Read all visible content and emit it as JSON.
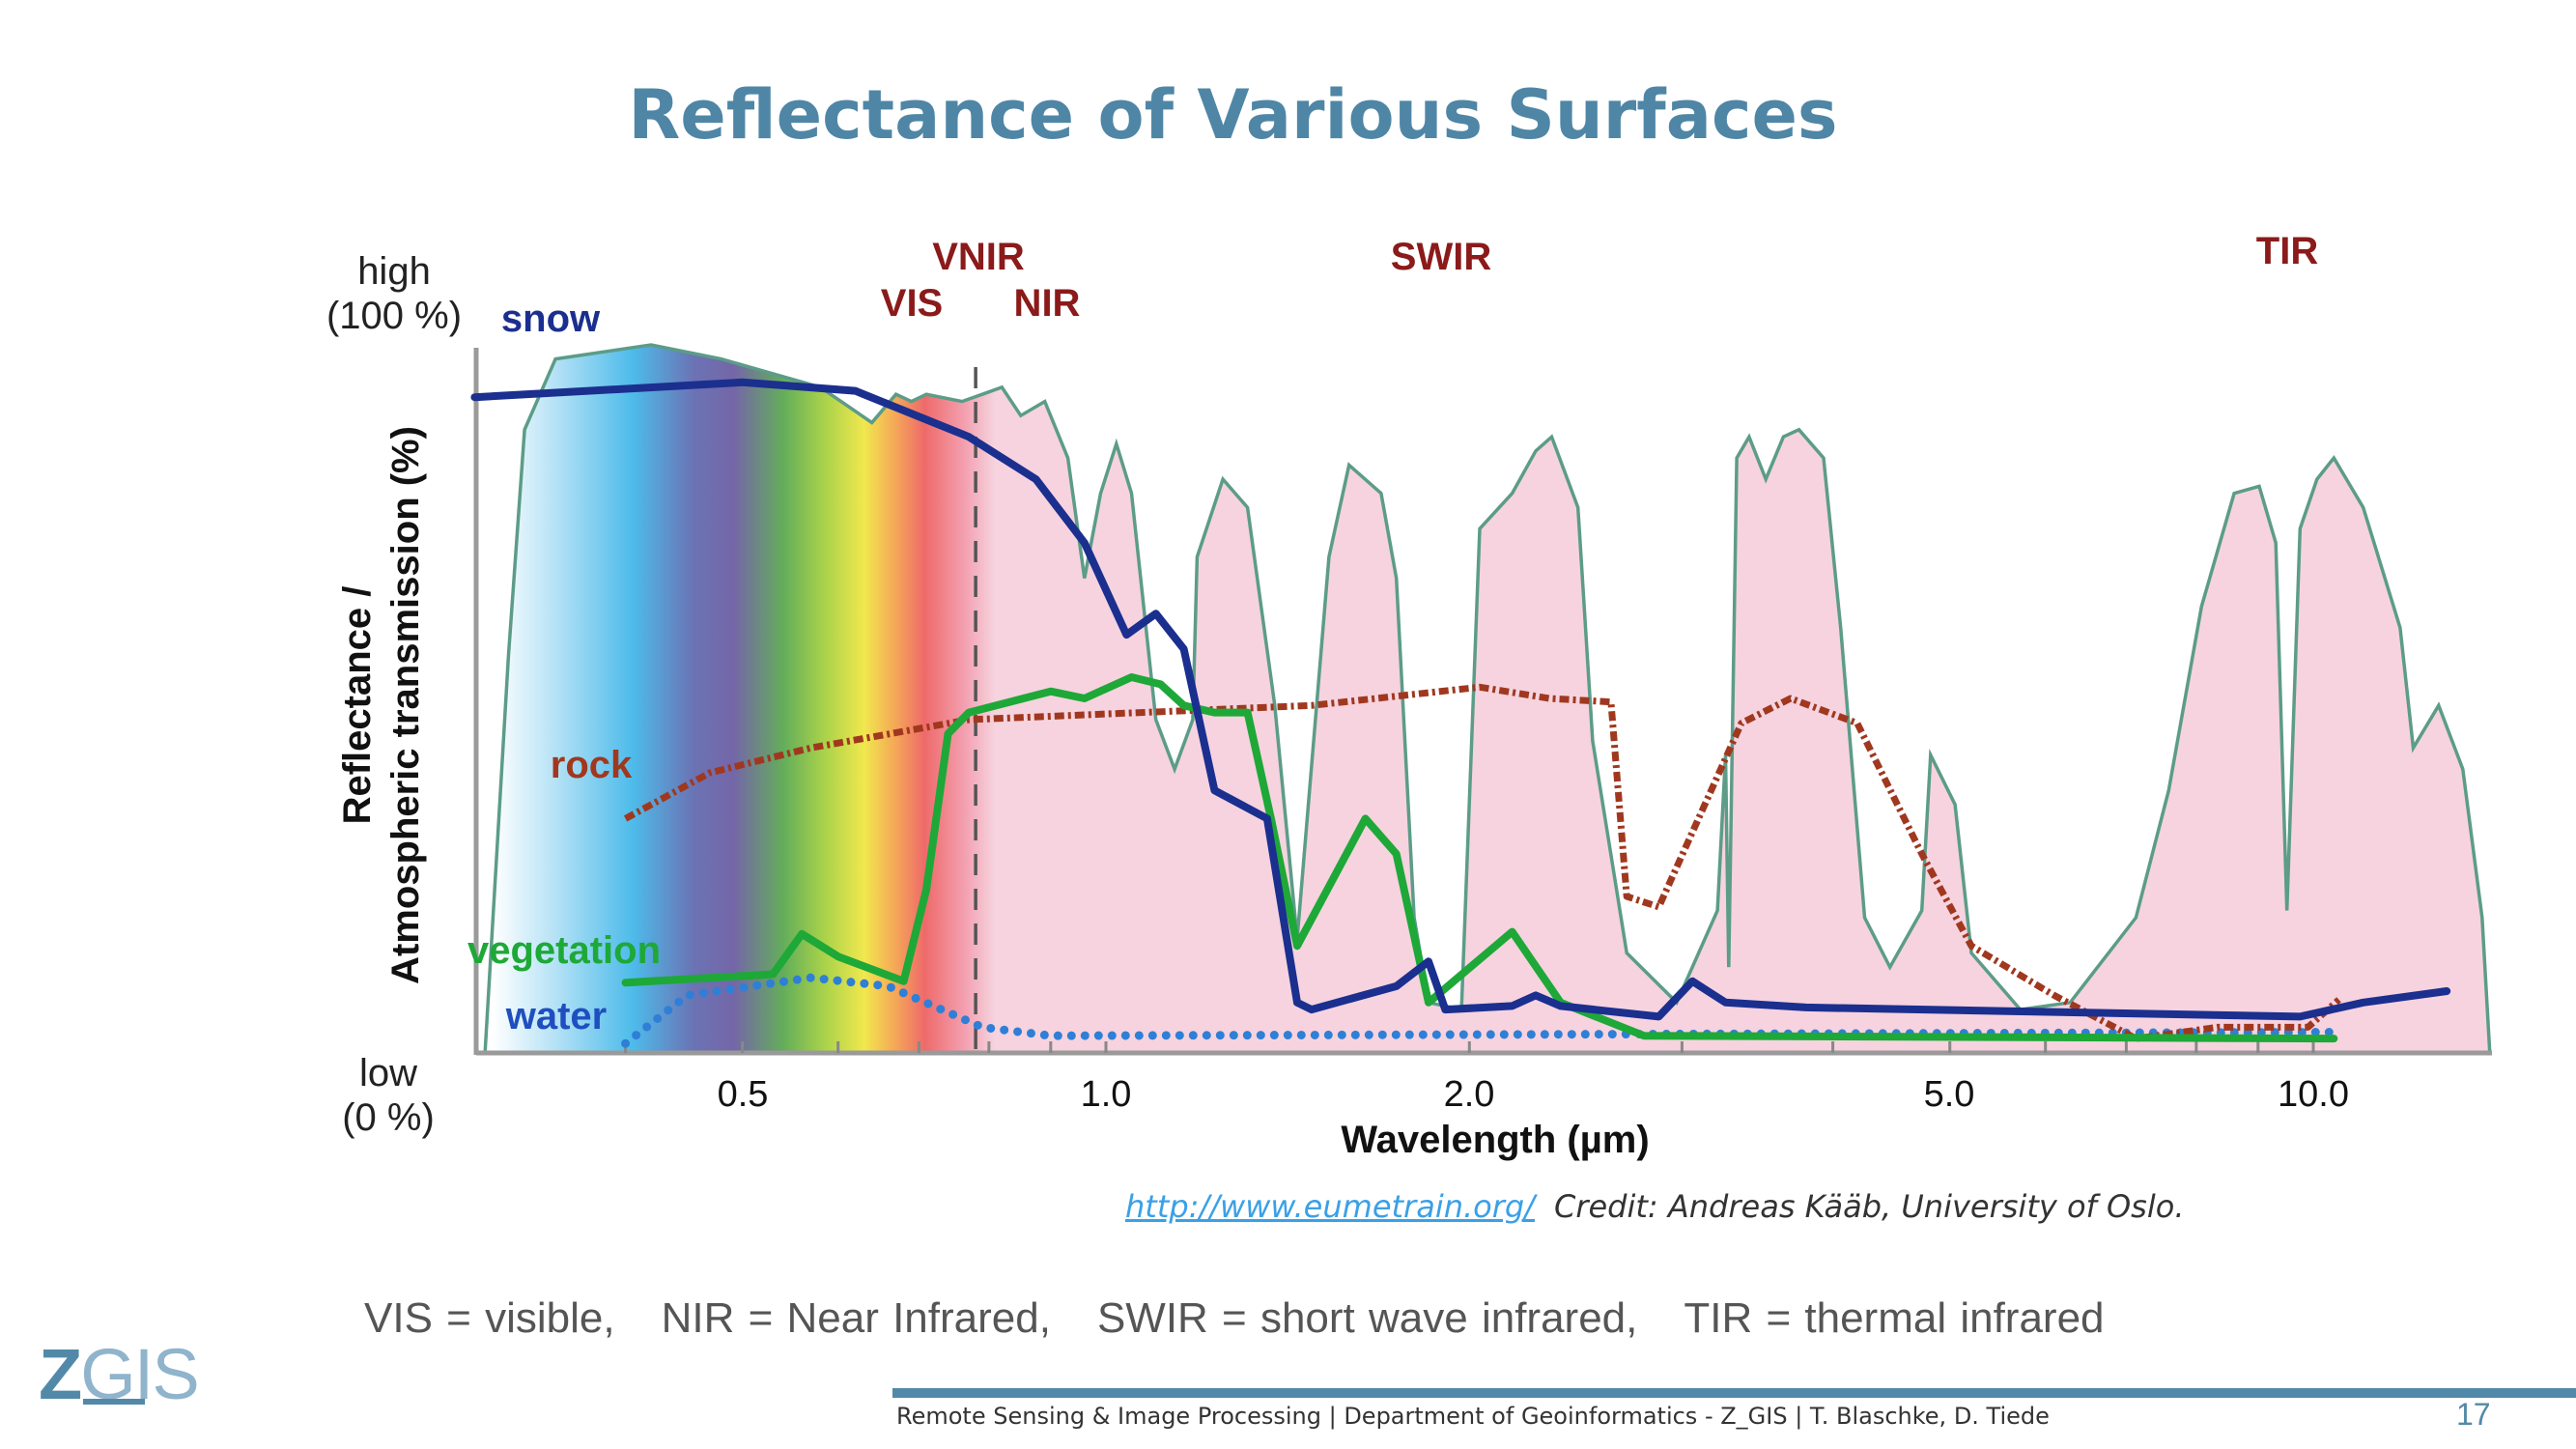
{
  "slide": {
    "title": "Reflectance of Various Surfaces",
    "credit_link": "http://www.eumetrain.org/",
    "credit_text": "Credit: Andreas Kääb, University of Oslo.",
    "definitions": [
      "VIS = visible,",
      "NIR = Near Infrared,",
      "SWIR = short wave infrared,",
      "TIR = thermal infrared"
    ],
    "footer": "Remote Sensing & Image Processing | Department of Geoinformatics - Z_GIS | T. Blaschke, D. Tiede",
    "page_number": "17",
    "logo": "Z_GIS"
  },
  "chart_data": {
    "type": "line",
    "xlabel": "Wavelength (µm)",
    "ylabel_line1": "Reflectance /",
    "ylabel_line2": "Atmospheric transmission (%)",
    "x_scale": "log",
    "xlim": [
      0.3,
      14
    ],
    "ylim": [
      0,
      100
    ],
    "x_ticks": [
      0.5,
      1.0,
      2.0,
      5.0,
      10.0
    ],
    "x_tick_labels": [
      "0.5",
      "1.0",
      "2.0",
      "5.0",
      "10.0"
    ],
    "y_high_label": [
      "high",
      "(100 %)"
    ],
    "y_low_label": [
      "low",
      "(0 %)"
    ],
    "grid": false,
    "bands": [
      {
        "label": "VNIR",
        "at": 0.78,
        "row": 1
      },
      {
        "label": "VIS",
        "at": 0.62,
        "row": 2
      },
      {
        "label": "NIR",
        "at": 0.98,
        "row": 2
      },
      {
        "label": "SWIR",
        "at": 1.92,
        "row": 1
      },
      {
        "label": "TIR",
        "at": 9.4,
        "row": 1
      }
    ],
    "vis_nir_boundary": 0.78,
    "atmospheric_transmission": {
      "fill": "#f6d3df",
      "stroke": "#5c9c88",
      "points": [
        [
          0.306,
          0
        ],
        [
          0.32,
          56
        ],
        [
          0.33,
          88
        ],
        [
          0.35,
          98
        ],
        [
          0.42,
          100
        ],
        [
          0.48,
          98
        ],
        [
          0.58,
          94
        ],
        [
          0.64,
          89
        ],
        [
          0.67,
          93
        ],
        [
          0.69,
          92
        ],
        [
          0.71,
          93
        ],
        [
          0.76,
          92
        ],
        [
          0.79,
          93
        ],
        [
          0.82,
          94
        ],
        [
          0.85,
          90
        ],
        [
          0.89,
          92
        ],
        [
          0.93,
          84
        ],
        [
          0.96,
          67
        ],
        [
          0.99,
          79
        ],
        [
          1.02,
          86
        ],
        [
          1.05,
          79
        ],
        [
          1.1,
          47
        ],
        [
          1.14,
          40
        ],
        [
          1.18,
          47
        ],
        [
          1.19,
          70
        ],
        [
          1.25,
          81
        ],
        [
          1.31,
          77
        ],
        [
          1.38,
          49
        ],
        [
          1.44,
          16
        ],
        [
          1.53,
          70
        ],
        [
          1.59,
          83
        ],
        [
          1.69,
          79
        ],
        [
          1.74,
          67
        ],
        [
          1.8,
          19
        ],
        [
          1.85,
          7
        ],
        [
          1.97,
          6
        ],
        [
          2.04,
          74
        ],
        [
          2.17,
          79
        ],
        [
          2.27,
          85
        ],
        [
          2.34,
          87
        ],
        [
          2.46,
          77
        ],
        [
          2.53,
          44
        ],
        [
          2.7,
          14
        ],
        [
          2.97,
          7
        ],
        [
          3.21,
          20
        ],
        [
          3.26,
          42
        ],
        [
          3.28,
          12
        ],
        [
          3.33,
          84
        ],
        [
          3.41,
          87
        ],
        [
          3.52,
          81
        ],
        [
          3.64,
          87
        ],
        [
          3.75,
          88
        ],
        [
          3.93,
          84
        ],
        [
          4.06,
          60
        ],
        [
          4.25,
          19
        ],
        [
          4.46,
          12
        ],
        [
          4.74,
          20
        ],
        [
          4.82,
          42
        ],
        [
          5.05,
          35
        ],
        [
          5.21,
          14
        ],
        [
          5.72,
          6
        ],
        [
          6.29,
          7
        ],
        [
          7.13,
          19
        ],
        [
          7.59,
          37
        ],
        [
          8.08,
          63
        ],
        [
          8.6,
          79
        ],
        [
          9.02,
          80
        ],
        [
          9.31,
          72
        ],
        [
          9.51,
          20
        ],
        [
          9.75,
          74
        ],
        [
          10.07,
          81
        ],
        [
          10.4,
          84
        ],
        [
          11.0,
          77
        ],
        [
          11.8,
          60
        ],
        [
          12.1,
          43
        ],
        [
          12.7,
          49
        ],
        [
          13.3,
          40
        ],
        [
          13.8,
          19
        ],
        [
          14.0,
          0
        ]
      ]
    },
    "series": [
      {
        "name": "snow",
        "color": "#1b2f8f",
        "style": "solid",
        "points": [
          [
            0.3,
            92.6
          ],
          [
            0.5,
            94.7
          ],
          [
            0.62,
            93.5
          ],
          [
            0.77,
            87
          ],
          [
            0.875,
            81
          ],
          [
            0.96,
            72
          ],
          [
            1.04,
            59
          ],
          [
            1.1,
            62
          ],
          [
            1.16,
            57
          ],
          [
            1.23,
            37
          ],
          [
            1.36,
            33
          ],
          [
            1.44,
            7
          ],
          [
            1.48,
            6
          ],
          [
            1.74,
            9.3
          ],
          [
            1.85,
            12.8
          ],
          [
            1.91,
            6
          ],
          [
            2.17,
            6.5
          ],
          [
            2.27,
            8
          ],
          [
            2.38,
            6.5
          ],
          [
            2.87,
            5
          ],
          [
            3.06,
            10
          ],
          [
            3.26,
            7
          ],
          [
            3.8,
            6.3
          ],
          [
            9.75,
            5
          ],
          [
            11.0,
            7
          ],
          [
            12.9,
            8.6
          ]
        ]
      },
      {
        "name": "rock",
        "color": "#a0381f",
        "style": "dashdot",
        "points": [
          [
            0.4,
            33
          ],
          [
            0.47,
            39.5
          ],
          [
            0.57,
            43
          ],
          [
            0.77,
            47
          ],
          [
            1.07,
            48
          ],
          [
            1.48,
            49
          ],
          [
            2.04,
            51.6
          ],
          [
            2.33,
            50
          ],
          [
            2.62,
            49.5
          ],
          [
            2.7,
            22
          ],
          [
            2.87,
            20.5
          ],
          [
            3.36,
            46.5
          ],
          [
            3.69,
            50
          ],
          [
            4.19,
            46.5
          ],
          [
            4.74,
            28
          ],
          [
            5.21,
            15
          ],
          [
            6.1,
            8
          ],
          [
            7.13,
            1.9
          ],
          [
            8.33,
            3.5
          ],
          [
            9.9,
            3.5
          ],
          [
            10.5,
            7.4
          ]
        ]
      },
      {
        "name": "vegetation",
        "color": "#1ea838",
        "style": "solid",
        "points": [
          [
            0.4,
            9.8
          ],
          [
            0.53,
            11
          ],
          [
            0.56,
            16.7
          ],
          [
            0.6,
            13.5
          ],
          [
            0.68,
            10
          ],
          [
            0.71,
            23
          ],
          [
            0.74,
            45
          ],
          [
            0.77,
            48
          ],
          [
            0.9,
            51
          ],
          [
            0.96,
            50
          ],
          [
            1.05,
            53
          ],
          [
            1.11,
            52
          ],
          [
            1.16,
            49
          ],
          [
            1.23,
            48
          ],
          [
            1.31,
            48
          ],
          [
            1.37,
            33
          ],
          [
            1.44,
            15
          ],
          [
            1.64,
            33
          ],
          [
            1.74,
            28
          ],
          [
            1.85,
            7
          ],
          [
            2.17,
            17
          ],
          [
            2.38,
            7
          ],
          [
            2.79,
            2.3
          ],
          [
            10.4,
            1.9
          ]
        ]
      },
      {
        "name": "water",
        "color": "#2f7fd6",
        "style": "dotted",
        "points": [
          [
            0.4,
            1.2
          ],
          [
            0.45,
            8
          ],
          [
            0.57,
            10.5
          ],
          [
            0.66,
            9.3
          ],
          [
            0.79,
            3.5
          ],
          [
            0.9,
            2.3
          ],
          [
            10.4,
            2.8
          ]
        ]
      }
    ]
  }
}
